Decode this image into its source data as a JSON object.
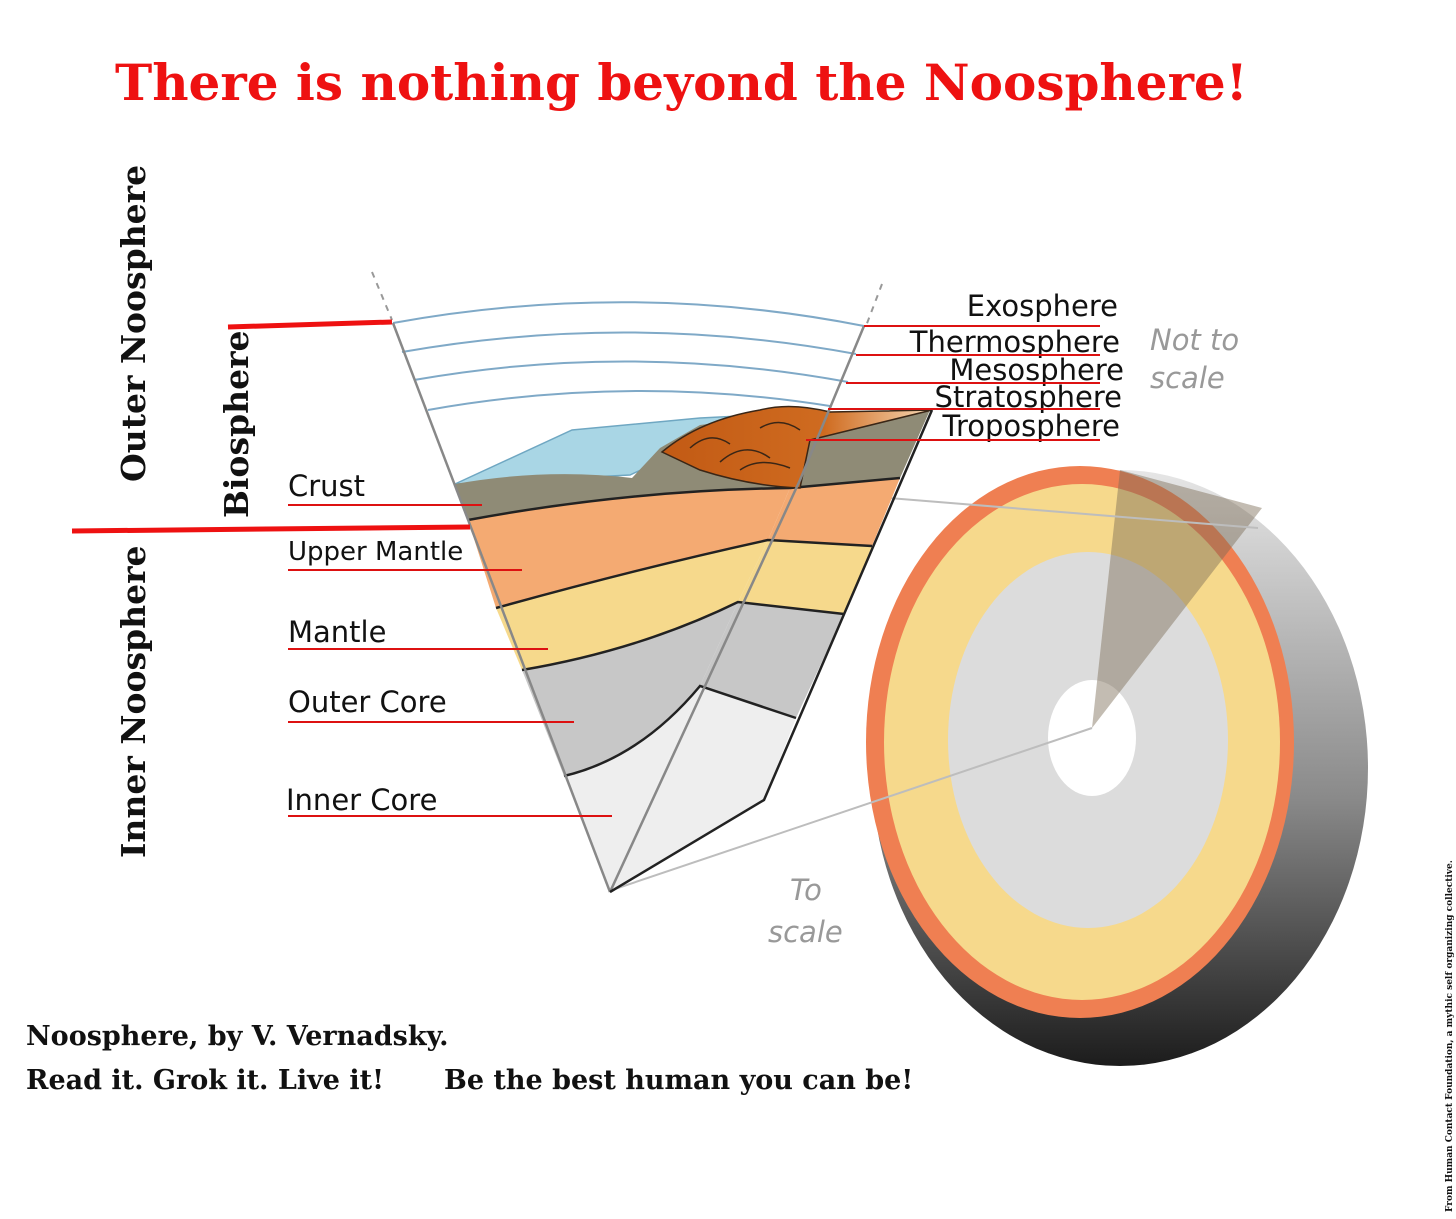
{
  "title": "There is nothing beyond the Noosphere!",
  "layers": {
    "crust": "Crust",
    "upper_mantle": "Upper Mantle",
    "mantle": "Mantle",
    "outer_core": "Outer Core",
    "inner_core": "Inner Core"
  },
  "atmosphere": {
    "exosphere": "Exosphere",
    "thermosphere": "Thermosphere",
    "mesosphere": "Mesosphere",
    "stratosphere": "Stratosphere",
    "troposphere": "Troposphere"
  },
  "notes": {
    "not_to_scale_line1": "Not to",
    "not_to_scale_line2": "scale",
    "to_scale_line1": "To",
    "to_scale_line2": "scale"
  },
  "side_labels": {
    "outer_noosphere": "Outer Noosphere",
    "biosphere": "Biosphere",
    "inner_noosphere": "Inner Noosphere"
  },
  "footer": {
    "line1": "Noosphere, by V. Vernadsky.",
    "line2a": "Read it. Grok it. Live it!",
    "line2b": "Be the best human you can be!"
  },
  "credit": "From Human Contact Foundation, a mythic self organizing collective.",
  "colors": {
    "title_red": "#ee1111",
    "crust": "#8f8b76",
    "upper_mantle": "#f4aa72",
    "mantle": "#f6d98c",
    "outer_core": "#c7c7c7",
    "inner_core": "#eeeeee",
    "ocean": "#a9d6e5",
    "mountain": "#c8651b"
  }
}
